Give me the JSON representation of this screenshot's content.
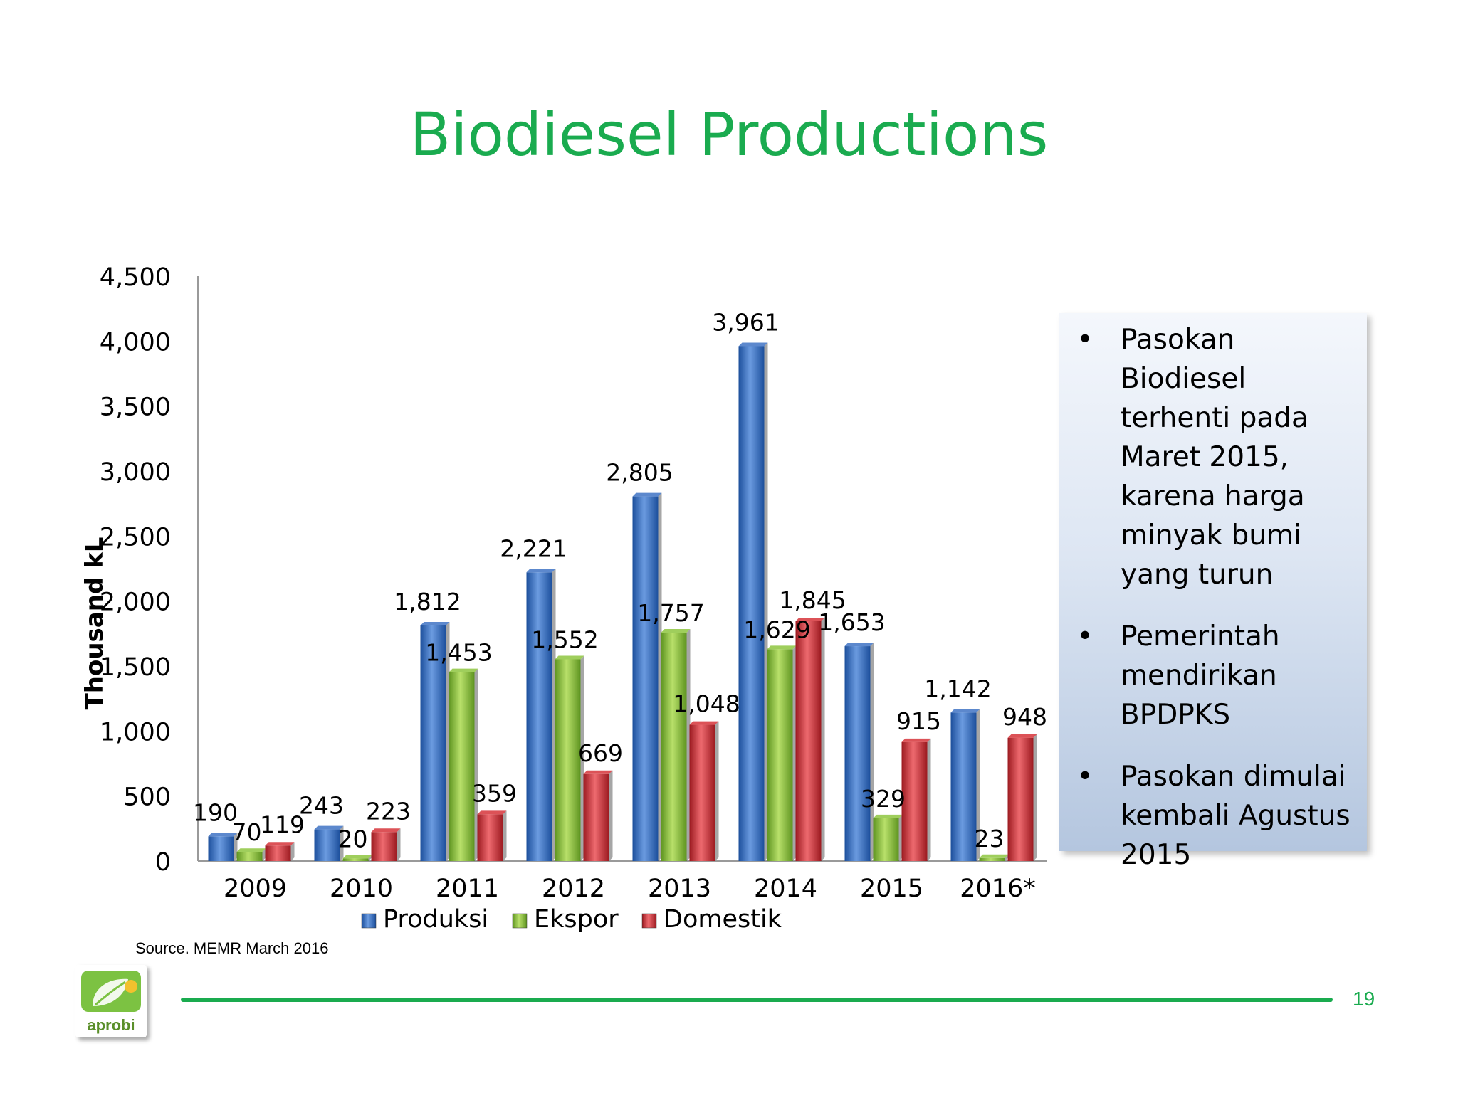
{
  "slide": {
    "title": "Biodiesel Productions",
    "source": "Source. MEMR March 2016",
    "page_number": "19",
    "logo_text": "aprobi",
    "accent_color": "#1aab4f"
  },
  "notes": [
    "Pasokan Biodiesel terhenti pada Maret 2015, karena harga minyak bumi yang turun",
    "Pemerintah mendirikan BPDPKS",
    "Pasokan dimulai kembali Agustus 2015"
  ],
  "bullet_symbol": "•",
  "chart_data": {
    "type": "bar",
    "title": "",
    "ylabel": "Thousand kL",
    "xlabel": "",
    "ylim": [
      0,
      4500
    ],
    "ytick_step": 500,
    "ytick_labels": [
      "0",
      "500",
      "1,000",
      "1,500",
      "2,000",
      "2,500",
      "3,000",
      "3,500",
      "4,000",
      "4,500"
    ],
    "categories": [
      "2009",
      "2010",
      "2011",
      "2012",
      "2013",
      "2014",
      "2015",
      "2016*"
    ],
    "legend_position": "bottom",
    "series": [
      {
        "name": "Produksi",
        "color": "#3f73c4",
        "values": [
          190,
          243,
          1812,
          2221,
          2805,
          3961,
          1653,
          1142
        ],
        "labels": [
          "190",
          "243",
          "1,812",
          "2,221",
          "2,805",
          "3,961",
          "1,653",
          "1,142"
        ]
      },
      {
        "name": "Ekspor",
        "color": "#8ec63f",
        "values": [
          70,
          20,
          1453,
          1552,
          1757,
          1629,
          329,
          23
        ],
        "labels": [
          "70",
          "20",
          "1,453",
          "1,552",
          "1,757",
          "1,629",
          "329",
          "23"
        ]
      },
      {
        "name": "Domestik",
        "color": "#d6343a",
        "values": [
          119,
          223,
          359,
          669,
          1048,
          1845,
          915,
          948
        ],
        "labels": [
          "119",
          "223",
          "359",
          "669",
          "1,048",
          "1,845",
          "915",
          "948"
        ]
      }
    ]
  }
}
